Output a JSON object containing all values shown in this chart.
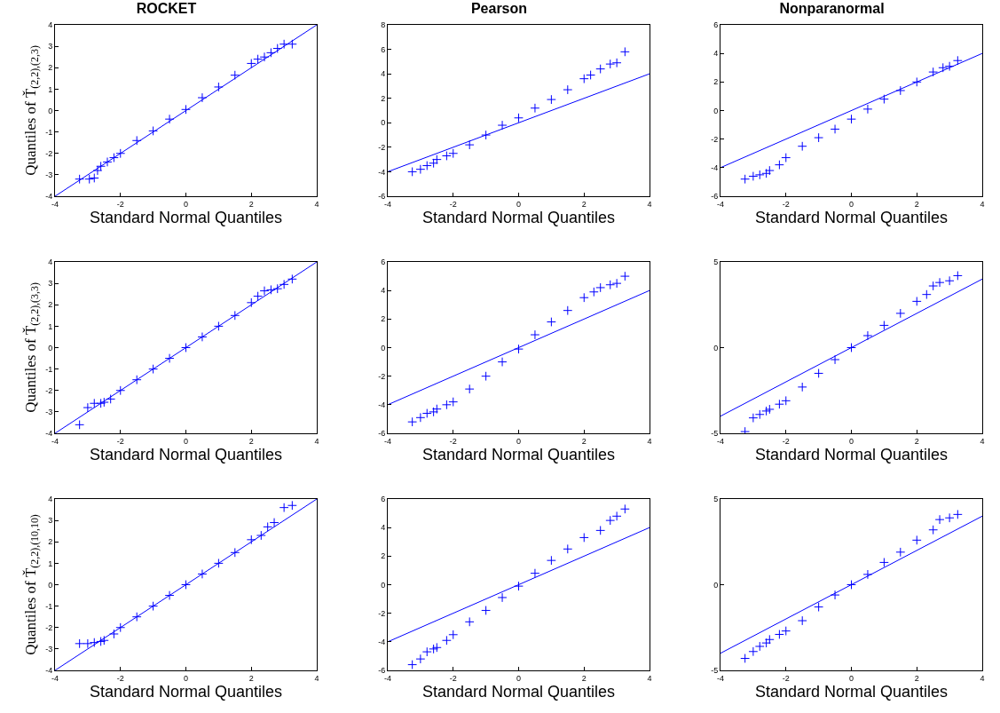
{
  "chart_data": [
    {
      "type": "scatter",
      "title": "ROCKET",
      "xlabel": "Standard Normal Quantiles",
      "ylabel": "Quantiles of Ť$_{(2,2),(2,3)}$",
      "xlim": [
        -4,
        4
      ],
      "xticks": [
        -4,
        -2,
        0,
        2,
        4
      ],
      "ylim": [
        -4,
        4
      ],
      "yticks": [
        -4,
        -3,
        -2,
        -1,
        0,
        1,
        2,
        3,
        4
      ],
      "series": [
        {
          "marker": "cross",
          "color": "#0000ff",
          "x": [
            -3.25,
            -2.95,
            -2.8,
            -2.7,
            -2.6,
            -2.4,
            -2.2,
            -2,
            -1.5,
            -1,
            -0.5,
            0,
            0.5,
            1,
            1.5,
            2,
            2.2,
            2.4,
            2.6,
            2.8,
            3,
            3.25
          ],
          "values": [
            -3.2,
            -3.2,
            -3.15,
            -2.8,
            -2.6,
            -2.4,
            -2.2,
            -2.0,
            -1.4,
            -0.95,
            -0.4,
            0.05,
            0.6,
            1.1,
            1.65,
            2.2,
            2.4,
            2.5,
            2.7,
            2.9,
            3.1,
            3.1
          ]
        },
        {
          "type": "line",
          "color": "#0000ff",
          "x": [
            -4,
            4
          ],
          "values": [
            -4,
            4
          ]
        }
      ]
    },
    {
      "type": "scatter",
      "title": "Pearson",
      "xlabel": "Standard Normal Quantiles",
      "xlim": [
        -4,
        4
      ],
      "xticks": [
        -4,
        -2,
        0,
        2,
        4
      ],
      "ylim": [
        -6,
        8
      ],
      "yticks": [
        -6,
        -4,
        -2,
        0,
        2,
        4,
        6,
        8
      ],
      "series": [
        {
          "marker": "cross",
          "color": "#0000ff",
          "x": [
            -3.25,
            -3,
            -2.8,
            -2.6,
            -2.5,
            -2.2,
            -2,
            -1.5,
            -1,
            -0.5,
            0,
            0.5,
            1,
            1.5,
            2,
            2.2,
            2.5,
            2.8,
            3,
            3.25
          ],
          "values": [
            -4,
            -3.8,
            -3.5,
            -3.3,
            -3.0,
            -2.7,
            -2.5,
            -1.8,
            -1.0,
            -0.2,
            0.4,
            1.2,
            1.9,
            2.7,
            3.6,
            3.9,
            4.4,
            4.8,
            4.9,
            5.8
          ]
        },
        {
          "type": "line",
          "color": "#0000ff",
          "x": [
            -4,
            4
          ],
          "values": [
            -4,
            4
          ]
        }
      ]
    },
    {
      "type": "scatter",
      "title": "Nonparanormal",
      "xlabel": "Standard Normal Quantiles",
      "xlim": [
        -4,
        4
      ],
      "xticks": [
        -4,
        -2,
        0,
        2,
        4
      ],
      "ylim": [
        -6,
        6
      ],
      "yticks": [
        -6,
        -4,
        -2,
        0,
        2,
        4,
        6
      ],
      "series": [
        {
          "marker": "cross",
          "color": "#0000ff",
          "x": [
            -3.25,
            -3,
            -2.8,
            -2.6,
            -2.5,
            -2.2,
            -2,
            -1.5,
            -1,
            -0.5,
            0,
            0.5,
            1,
            1.5,
            2,
            2.5,
            2.8,
            3,
            3.25
          ],
          "values": [
            -4.8,
            -4.6,
            -4.5,
            -4.4,
            -4.2,
            -3.8,
            -3.3,
            -2.5,
            -1.9,
            -1.3,
            -0.6,
            0.1,
            0.8,
            1.4,
            2.0,
            2.7,
            3.0,
            3.1,
            3.5
          ]
        },
        {
          "type": "line",
          "color": "#0000ff",
          "x": [
            -4,
            4
          ],
          "values": [
            -4,
            4
          ]
        }
      ]
    },
    {
      "type": "scatter",
      "xlabel": "Standard Normal Quantiles",
      "ylabel": "Quantiles of Ť$_{(2,2),(3,3)}$",
      "xlim": [
        -4,
        4
      ],
      "xticks": [
        -4,
        -2,
        0,
        2,
        4
      ],
      "ylim": [
        -4,
        4
      ],
      "yticks": [
        -4,
        -3,
        -2,
        -1,
        0,
        1,
        2,
        3,
        4
      ],
      "series": [
        {
          "marker": "cross",
          "color": "#0000ff",
          "x": [
            -3.25,
            -3,
            -2.8,
            -2.6,
            -2.5,
            -2.3,
            -2,
            -1.5,
            -1,
            -0.5,
            0,
            0.5,
            1,
            1.5,
            2,
            2.2,
            2.4,
            2.6,
            2.8,
            3,
            3.25
          ],
          "values": [
            -3.6,
            -2.8,
            -2.6,
            -2.6,
            -2.55,
            -2.4,
            -2.0,
            -1.5,
            -1.0,
            -0.5,
            0,
            0.5,
            1.0,
            1.5,
            2.1,
            2.4,
            2.65,
            2.7,
            2.75,
            2.95,
            3.2
          ]
        },
        {
          "type": "line",
          "color": "#0000ff",
          "x": [
            -4,
            4
          ],
          "values": [
            -4,
            4
          ]
        }
      ]
    },
    {
      "type": "scatter",
      "xlabel": "Standard Normal Quantiles",
      "xlim": [
        -4,
        4
      ],
      "xticks": [
        -4,
        -2,
        0,
        2,
        4
      ],
      "ylim": [
        -6,
        6
      ],
      "yticks": [
        -6,
        -4,
        -2,
        0,
        2,
        4,
        6
      ],
      "series": [
        {
          "marker": "cross",
          "color": "#0000ff",
          "x": [
            -3.25,
            -3,
            -2.8,
            -2.6,
            -2.5,
            -2.2,
            -2,
            -1.5,
            -1,
            -0.5,
            0,
            0.5,
            1,
            1.5,
            2,
            2.3,
            2.5,
            2.8,
            3,
            3.25
          ],
          "values": [
            -5.2,
            -4.9,
            -4.6,
            -4.5,
            -4.3,
            -4.0,
            -3.8,
            -2.9,
            -2.0,
            -1.0,
            -0.1,
            0.9,
            1.8,
            2.6,
            3.5,
            3.9,
            4.2,
            4.4,
            4.5,
            5.0
          ]
        },
        {
          "type": "line",
          "color": "#0000ff",
          "x": [
            -4,
            4
          ],
          "values": [
            -4,
            4
          ]
        }
      ]
    },
    {
      "type": "scatter",
      "xlabel": "Standard Normal Quantiles",
      "xlim": [
        -4,
        4
      ],
      "xticks": [
        -4,
        -2,
        0,
        2,
        4
      ],
      "ylim": [
        -5,
        5
      ],
      "yticks": [
        -5,
        0,
        5
      ],
      "series": [
        {
          "marker": "cross",
          "color": "#0000ff",
          "x": [
            -3.25,
            -3,
            -2.8,
            -2.6,
            -2.5,
            -2.2,
            -2,
            -1.5,
            -1,
            -0.5,
            0,
            0.5,
            1,
            1.5,
            2,
            2.3,
            2.5,
            2.7,
            3,
            3.25
          ],
          "values": [
            -4.9,
            -4.1,
            -3.9,
            -3.7,
            -3.6,
            -3.3,
            -3.1,
            -2.3,
            -1.5,
            -0.7,
            0,
            0.7,
            1.3,
            2.0,
            2.7,
            3.1,
            3.6,
            3.8,
            3.9,
            4.2
          ]
        },
        {
          "type": "line",
          "color": "#0000ff",
          "x": [
            -4,
            4
          ],
          "values": [
            -4,
            4
          ]
        }
      ]
    },
    {
      "type": "scatter",
      "xlabel": "Standard Normal Quantiles",
      "ylabel": "Quantiles of Ť$_{(2,2),(10,10)}$",
      "xlim": [
        -4,
        4
      ],
      "xticks": [
        -4,
        -2,
        0,
        2,
        4
      ],
      "ylim": [
        -4,
        4
      ],
      "yticks": [
        -4,
        -3,
        -2,
        -1,
        0,
        1,
        2,
        3,
        4
      ],
      "series": [
        {
          "marker": "cross",
          "color": "#0000ff",
          "x": [
            -3.25,
            -3,
            -2.8,
            -2.6,
            -2.5,
            -2.2,
            -2,
            -1.5,
            -1,
            -0.5,
            0,
            0.5,
            1,
            1.5,
            2,
            2.3,
            2.5,
            2.7,
            3,
            3.25
          ],
          "values": [
            -2.75,
            -2.75,
            -2.7,
            -2.65,
            -2.6,
            -2.3,
            -2.0,
            -1.5,
            -1.0,
            -0.5,
            0,
            0.5,
            1.0,
            1.5,
            2.1,
            2.3,
            2.7,
            2.9,
            3.6,
            3.7
          ]
        },
        {
          "type": "line",
          "color": "#0000ff",
          "x": [
            -4,
            4
          ],
          "values": [
            -4,
            4
          ]
        }
      ]
    },
    {
      "type": "scatter",
      "xlabel": "Standard Normal Quantiles",
      "xlim": [
        -4,
        4
      ],
      "xticks": [
        -4,
        -2,
        0,
        2,
        4
      ],
      "ylim": [
        -6,
        6
      ],
      "yticks": [
        -6,
        -4,
        -2,
        0,
        2,
        4,
        6
      ],
      "series": [
        {
          "marker": "cross",
          "color": "#0000ff",
          "x": [
            -3.25,
            -3,
            -2.8,
            -2.6,
            -2.5,
            -2.2,
            -2,
            -1.5,
            -1,
            -0.5,
            0,
            0.5,
            1,
            1.5,
            2,
            2.5,
            2.8,
            3,
            3.25
          ],
          "values": [
            -5.6,
            -5.2,
            -4.7,
            -4.5,
            -4.4,
            -3.9,
            -3.5,
            -2.6,
            -1.8,
            -0.9,
            -0.1,
            0.8,
            1.7,
            2.5,
            3.3,
            3.8,
            4.5,
            4.8,
            5.3
          ]
        },
        {
          "type": "line",
          "color": "#0000ff",
          "x": [
            -4,
            4
          ],
          "values": [
            -4,
            4
          ]
        }
      ]
    },
    {
      "type": "scatter",
      "xlabel": "Standard Normal Quantiles",
      "xlim": [
        -4,
        4
      ],
      "xticks": [
        -4,
        -2,
        0,
        2,
        4
      ],
      "ylim": [
        -5,
        5
      ],
      "yticks": [
        -5,
        0,
        5
      ],
      "series": [
        {
          "marker": "cross",
          "color": "#0000ff",
          "x": [
            -3.25,
            -3,
            -2.8,
            -2.6,
            -2.5,
            -2.2,
            -2,
            -1.5,
            -1,
            -0.5,
            0,
            0.5,
            1,
            1.5,
            2,
            2.5,
            2.7,
            3,
            3.25
          ],
          "values": [
            -4.3,
            -3.9,
            -3.6,
            -3.4,
            -3.2,
            -2.9,
            -2.7,
            -2.1,
            -1.3,
            -0.6,
            0,
            0.6,
            1.3,
            1.9,
            2.6,
            3.2,
            3.8,
            3.9,
            4.1
          ]
        },
        {
          "type": "line",
          "color": "#0000ff",
          "x": [
            -4,
            4
          ],
          "values": [
            -4,
            4
          ]
        }
      ]
    }
  ]
}
